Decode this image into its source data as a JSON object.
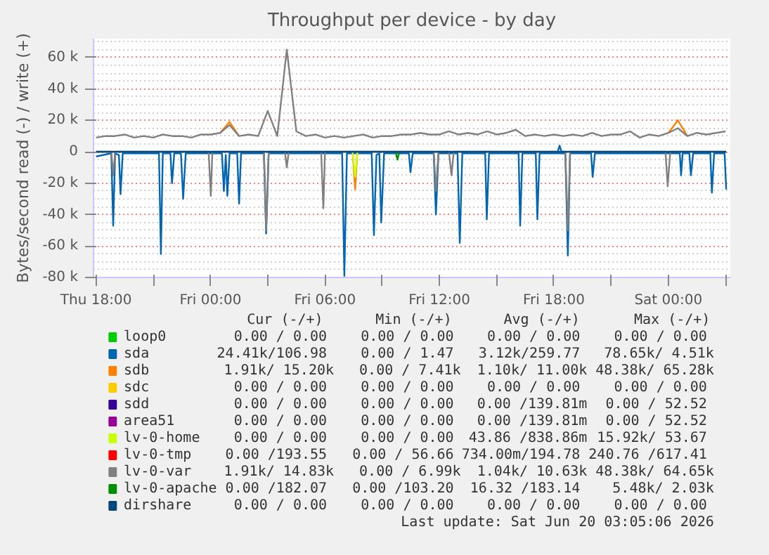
{
  "chart_data": {
    "type": "line",
    "title": "Throughput per device - by day",
    "ylabel": "Bytes/second read (-) / write (+)",
    "xlim": [
      "2026-06-18T17:52",
      "2026-06-20T03:15"
    ],
    "ylim": [
      -80000,
      72000
    ],
    "xticks": [
      {
        "value": "2026-06-18T18:00",
        "label": "Thu 18:00"
      },
      {
        "value": "2026-06-18T21:00",
        "label": null
      },
      {
        "value": "2026-06-19T00:00",
        "label": "Fri 00:00"
      },
      {
        "value": "2026-06-19T03:00",
        "label": null
      },
      {
        "value": "2026-06-19T06:00",
        "label": "Fri 06:00"
      },
      {
        "value": "2026-06-19T09:00",
        "label": null
      },
      {
        "value": "2026-06-19T12:00",
        "label": "Fri 12:00"
      },
      {
        "value": "2026-06-19T15:00",
        "label": null
      },
      {
        "value": "2026-06-19T18:00",
        "label": "Fri 18:00"
      },
      {
        "value": "2026-06-19T21:00",
        "label": null
      },
      {
        "value": "2026-06-20T00:00",
        "label": "Sat 00:00"
      },
      {
        "value": "2026-06-20T03:00",
        "label": null
      }
    ],
    "yticks": [
      {
        "value": -80000,
        "label": "-80 k"
      },
      {
        "value": -60000,
        "label": "-60 k"
      },
      {
        "value": -40000,
        "label": "-40 k"
      },
      {
        "value": -20000,
        "label": "-20 k"
      },
      0,
      {
        "value": 20000,
        "label": "20 k"
      },
      {
        "value": 40000,
        "label": "40 k"
      },
      {
        "value": 60000,
        "label": "60 k"
      }
    ],
    "grid": true,
    "legend": "bottom",
    "line_style": "solid",
    "marker": "none",
    "series": [
      {
        "name": "loop0",
        "color": "#00cc00"
      },
      {
        "name": "sda",
        "color": "#0066b3",
        "x": [
          "2026-06-18T18:00",
          "2026-06-18T18:48",
          "2026-06-18T18:54",
          "2026-06-18T19:00",
          "2026-06-18T19:12",
          "2026-06-18T19:17",
          "2026-06-18T19:24",
          "2026-06-18T21:18",
          "2026-06-18T21:24",
          "2026-06-18T21:30",
          "2026-06-18T21:54",
          "2026-06-18T21:59",
          "2026-06-18T22:06",
          "2026-06-18T22:27",
          "2026-06-18T22:34",
          "2026-06-18T22:42",
          "2026-06-19T00:36",
          "2026-06-19T00:42",
          "2026-06-19T00:48",
          "2026-06-19T00:53",
          "2026-06-19T01:00",
          "2026-06-19T01:24",
          "2026-06-19T01:30",
          "2026-06-19T01:36",
          "2026-06-19T02:48",
          "2026-06-19T02:55",
          "2026-06-19T03:03",
          "2026-06-19T06:54",
          "2026-06-19T07:01",
          "2026-06-19T07:09",
          "2026-06-19T08:27",
          "2026-06-19T08:34",
          "2026-06-19T08:42",
          "2026-06-19T08:51",
          "2026-06-19T08:57",
          "2026-06-19T09:06",
          "2026-06-19T10:24",
          "2026-06-19T10:29",
          "2026-06-19T10:36",
          "2026-06-19T11:42",
          "2026-06-19T11:49",
          "2026-06-19T11:57",
          "2026-06-19T12:57",
          "2026-06-19T13:04",
          "2026-06-19T13:12",
          "2026-06-19T14:24",
          "2026-06-19T14:29",
          "2026-06-19T14:36",
          "2026-06-19T16:09",
          "2026-06-19T16:14",
          "2026-06-19T16:21",
          "2026-06-19T17:03",
          "2026-06-19T17:08",
          "2026-06-19T17:15",
          "2026-06-19T18:36",
          "2026-06-19T18:44",
          "2026-06-19T18:51",
          "2026-06-19T19:57",
          "2026-06-19T20:02",
          "2026-06-19T20:09",
          "2026-06-20T00:36",
          "2026-06-20T00:40",
          "2026-06-20T00:45",
          "2026-06-20T01:06",
          "2026-06-20T01:11",
          "2026-06-20T01:18",
          "2026-06-20T02:12",
          "2026-06-20T02:17",
          "2026-06-20T02:24",
          "2026-06-20T02:57",
          "2026-06-20T03:02"
        ],
        "values": [
          -3000,
          -1000,
          -47000,
          -1000,
          -2000,
          -27000,
          -1000,
          -1000,
          -65000,
          -1000,
          -1000,
          -20000,
          -1000,
          -1000,
          -30000,
          -1000,
          -1000,
          -25000,
          -2000,
          -28000,
          -1000,
          -1000,
          -33000,
          -1000,
          -1000,
          -52000,
          -1000,
          -1000,
          -79000,
          -1000,
          -1000,
          -53000,
          -2000,
          -1000,
          -45000,
          -1000,
          -1000,
          -13000,
          -1000,
          -1000,
          -40000,
          -1000,
          -1000,
          -58000,
          -1000,
          -1000,
          -43000,
          -1000,
          -1000,
          -47000,
          -1000,
          -1000,
          -43000,
          -1000,
          -1000,
          -66000,
          -1000,
          -1000,
          -16000,
          -1000,
          -1000,
          -15000,
          -1000,
          -1000,
          -15000,
          -1000,
          -1000,
          -26000,
          -1000,
          -1000,
          -24000
        ]
      },
      {
        "name": "sdb",
        "color": "#ff8000",
        "x": [
          "2026-06-19T07:27",
          "2026-06-19T07:35",
          "2026-06-19T07:42"
        ],
        "values": [
          0,
          -24000,
          0
        ]
      },
      {
        "name": "sdc",
        "color": "#ffcc00"
      },
      {
        "name": "sdd",
        "color": "#330099"
      },
      {
        "name": "area51",
        "color": "#990099"
      },
      {
        "name": "lv-0-home",
        "color": "#ccff00",
        "x": [
          "2026-06-19T07:27",
          "2026-06-19T07:35",
          "2026-06-19T07:42"
        ],
        "values": [
          0,
          -16000,
          0
        ]
      },
      {
        "name": "lv-0-tmp",
        "color": "#ff0000"
      },
      {
        "name": "lv-0-var",
        "color": "#808080",
        "x": [
          "2026-06-18T18:00",
          "2026-06-18T18:48",
          "2026-06-18T18:54",
          "2026-06-18T19:00",
          "2026-06-18T23:54",
          "2026-06-19T00:01",
          "2026-06-19T00:06",
          "2026-06-19T02:48",
          "2026-06-19T02:55",
          "2026-06-19T03:03",
          "2026-06-19T03:54",
          "2026-06-19T04:00",
          "2026-06-19T04:06",
          "2026-06-19T05:48",
          "2026-06-19T05:55",
          "2026-06-19T06:00",
          "2026-06-19T11:42",
          "2026-06-19T11:49",
          "2026-06-19T11:57",
          "2026-06-19T12:30",
          "2026-06-19T12:38",
          "2026-06-19T12:45",
          "2026-06-19T18:36",
          "2026-06-19T18:44",
          "2026-06-19T18:51",
          "2026-06-19T23:51",
          "2026-06-19T23:58",
          "2026-06-20T00:06",
          "2026-06-20T03:02"
        ],
        "values": [
          0,
          0,
          -15000,
          0,
          0,
          -28000,
          0,
          0,
          -50000,
          0,
          0,
          -10000,
          0,
          0,
          -36000,
          0,
          0,
          -25000,
          0,
          0,
          -15000,
          0,
          0,
          -50000,
          0,
          0,
          -22000,
          0,
          0
        ]
      },
      {
        "name": "lv-0-apache",
        "color": "#008f00",
        "x": [
          "2026-06-19T09:42",
          "2026-06-19T09:48",
          "2026-06-19T09:54"
        ],
        "values": [
          0,
          -5000,
          0
        ]
      },
      {
        "name": "dirshare",
        "color": "#00487d",
        "x": [
          "2026-06-18T18:00",
          "2026-06-20T03:02"
        ],
        "values": [
          0,
          0
        ]
      },
      {
        "color": "#0066b3",
        "x": [
          "2026-06-19T18:12",
          "2026-06-19T18:18",
          "2026-06-19T18:24"
        ],
        "values": [
          0,
          4000,
          0
        ]
      },
      {
        "color": "#ff8000",
        "x": [
          "2026-06-19T00:30",
          "2026-06-19T01:00",
          "2026-06-19T01:30",
          "2026-06-19T23:59",
          "2026-06-20T00:00",
          "2026-06-20T00:30",
          "2026-06-20T01:00"
        ],
        "values": [
          12000,
          19000,
          10000,
          null,
          12000,
          20000,
          10000
        ]
      },
      {
        "color": "#808080",
        "x": [
          "2026-06-18T18:00",
          "2026-06-18T18:30",
          "2026-06-18T19:00",
          "2026-06-18T19:30",
          "2026-06-18T20:00",
          "2026-06-18T20:30",
          "2026-06-18T21:00",
          "2026-06-18T21:30",
          "2026-06-18T22:00",
          "2026-06-18T22:30",
          "2026-06-18T23:00",
          "2026-06-18T23:30",
          "2026-06-19T00:00",
          "2026-06-19T00:30",
          "2026-06-19T01:00",
          "2026-06-19T01:30",
          "2026-06-19T02:00",
          "2026-06-19T02:30",
          "2026-06-19T03:00",
          "2026-06-19T03:30",
          "2026-06-19T04:00",
          "2026-06-19T04:30",
          "2026-06-19T05:00",
          "2026-06-19T05:30",
          "2026-06-19T06:00",
          "2026-06-19T06:30",
          "2026-06-19T07:00",
          "2026-06-19T07:30",
          "2026-06-19T08:00",
          "2026-06-19T08:30",
          "2026-06-19T09:00",
          "2026-06-19T09:30",
          "2026-06-19T10:00",
          "2026-06-19T10:30",
          "2026-06-19T11:00",
          "2026-06-19T11:30",
          "2026-06-19T12:00",
          "2026-06-19T12:30",
          "2026-06-19T13:00",
          "2026-06-19T13:30",
          "2026-06-19T14:00",
          "2026-06-19T14:30",
          "2026-06-19T15:00",
          "2026-06-19T15:30",
          "2026-06-19T16:00",
          "2026-06-19T16:30",
          "2026-06-19T17:00",
          "2026-06-19T17:30",
          "2026-06-19T18:00",
          "2026-06-19T18:30",
          "2026-06-19T19:00",
          "2026-06-19T19:30",
          "2026-06-19T20:00",
          "2026-06-19T20:30",
          "2026-06-19T21:00",
          "2026-06-19T21:30",
          "2026-06-19T22:00",
          "2026-06-19T22:30",
          "2026-06-19T23:00",
          "2026-06-19T23:30",
          "2026-06-20T00:00",
          "2026-06-20T00:30",
          "2026-06-20T01:00",
          "2026-06-20T01:30",
          "2026-06-20T02:00",
          "2026-06-20T02:30",
          "2026-06-20T03:00"
        ],
        "values": [
          9000,
          10000,
          10000,
          11000,
          9000,
          10000,
          9000,
          11000,
          10000,
          10000,
          9000,
          11000,
          11000,
          12000,
          17000,
          10000,
          11000,
          10000,
          26000,
          10000,
          65000,
          13000,
          10000,
          11000,
          9000,
          10000,
          9000,
          10000,
          11000,
          9000,
          10000,
          10000,
          11000,
          11000,
          12000,
          11000,
          11000,
          13000,
          11000,
          12000,
          11000,
          13000,
          11000,
          12000,
          14000,
          10000,
          11000,
          10000,
          11000,
          10000,
          11000,
          10000,
          12000,
          10000,
          11000,
          11000,
          13000,
          9000,
          11000,
          10000,
          12000,
          15000,
          10000,
          12000,
          11000,
          12000,
          13000
        ]
      }
    ],
    "annotations": [
      "Cur (-/+)",
      "Min (-/+)",
      "Avg (-/+)",
      "Max (-/+)",
      "0.00 / 0.00",
      "0.00 / 0.00",
      "0.00 / 0.00",
      "0.00 / 0.00",
      "24.41k/106.98",
      "0.00 / 1.47",
      "3.12k/259.77",
      "78.65k/ 4.51k",
      "1.91k/ 15.20k",
      "0.00 / 7.41k",
      "1.10k/ 11.00k",
      "48.38k/ 65.28k",
      "0.00 / 0.00",
      "0.00 / 0.00",
      "0.00 / 0.00",
      "0.00 / 0.00",
      "0.00 / 0.00",
      "0.00 / 0.00",
      "0.00 /139.81m",
      "0.00 / 52.52",
      "0.00 / 0.00",
      "0.00 / 0.00",
      "0.00 /139.81m",
      "0.00 / 52.52",
      "0.00 / 0.00",
      "0.00 / 0.00",
      "43.86 /838.86m",
      "15.92k/ 53.67",
      "0.00 /193.55",
      "0.00 / 56.66",
      "734.00m/194.78",
      "240.76 /617.41",
      "1.91k/ 14.83k",
      "0.00 / 6.99k",
      "1.04k/ 10.63k",
      "48.38k/ 64.65k",
      "0.00 /182.07",
      "0.00 /103.20",
      "16.32 /183.14",
      "5.48k/ 2.03k",
      "0.00 / 0.00",
      "0.00 / 0.00",
      "0.00 / 0.00",
      "0.00 / 0.00",
      "Last update: Sat Jun 20 03:05:06 2026"
    ]
  }
}
